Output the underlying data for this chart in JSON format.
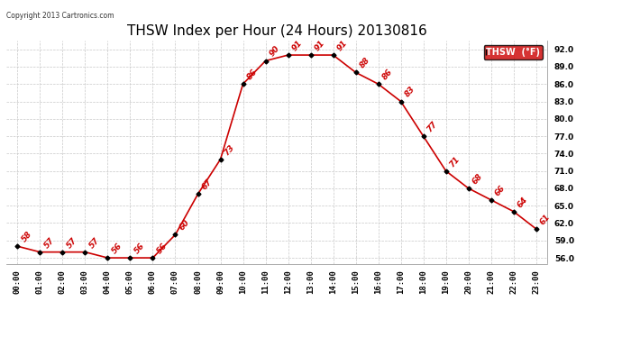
{
  "title": "THSW Index per Hour (24 Hours) 20130816",
  "copyright": "Copyright 2013 Cartronics.com",
  "legend_label": "THSW  (°F)",
  "hours": [
    "00:00",
    "01:00",
    "02:00",
    "03:00",
    "04:00",
    "05:00",
    "06:00",
    "07:00",
    "08:00",
    "09:00",
    "10:00",
    "11:00",
    "12:00",
    "13:00",
    "14:00",
    "15:00",
    "16:00",
    "17:00",
    "18:00",
    "19:00",
    "20:00",
    "21:00",
    "22:00",
    "23:00"
  ],
  "values": [
    58,
    57,
    57,
    57,
    56,
    56,
    56,
    60,
    67,
    73,
    86,
    90,
    91,
    91,
    91,
    88,
    86,
    83,
    77,
    71,
    68,
    66,
    64,
    61
  ],
  "ylim": [
    55.0,
    93.5
  ],
  "yticks": [
    56.0,
    59.0,
    62.0,
    65.0,
    68.0,
    71.0,
    74.0,
    77.0,
    80.0,
    83.0,
    86.0,
    89.0,
    92.0
  ],
  "line_color": "#cc0000",
  "marker_color": "#000000",
  "background_color": "#ffffff",
  "grid_color": "#c8c8c8",
  "title_fontsize": 11,
  "tick_fontsize": 6.5,
  "annotation_fontsize": 6.5,
  "legend_bg": "#cc0000",
  "legend_text_color": "#ffffff"
}
